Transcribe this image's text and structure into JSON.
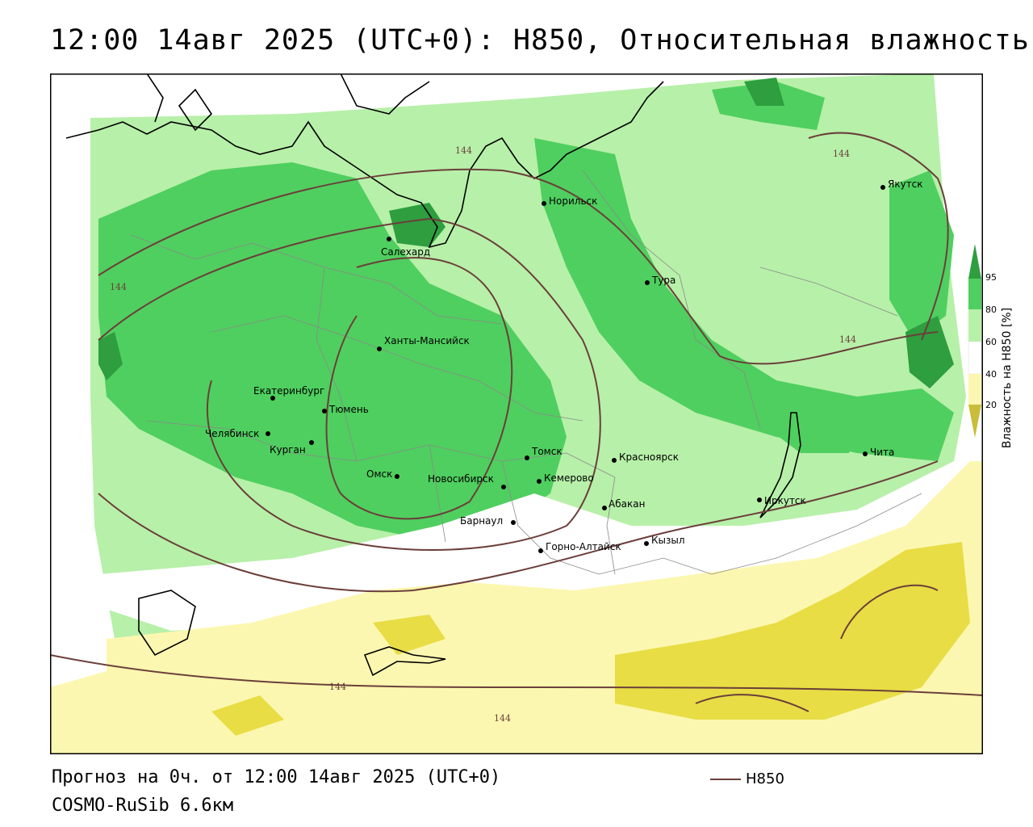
{
  "title": "12:00 14авг 2025 (UTC+0): H850, Относительная влажность",
  "forecast_line": "Прогноз на 0ч. от 12:00 14авг 2025 (UTC+0)",
  "model_line": "COSMO-RuSib 6.6км",
  "legend": {
    "label": "H850",
    "color": "#6b3f3a"
  },
  "colorbar": {
    "label": "Влажность на H850 [%]",
    "ticks": [
      "95",
      "80",
      "60",
      "40",
      "20"
    ],
    "colors": {
      "dark_green": "#2e9e3f",
      "green": "#4fcf5f",
      "light_green": "#b7f0a9",
      "white": "#ffffff",
      "light_yellow": "#fcf7b0",
      "yellow": "#e8dd45",
      "olive": "#c9bd3a"
    }
  },
  "contour_value": "144",
  "cities": [
    {
      "name": "Норильск"
    },
    {
      "name": "Якутск"
    },
    {
      "name": "Салехард"
    },
    {
      "name": "Тура"
    },
    {
      "name": "Ханты-Мансийск"
    },
    {
      "name": "Екатеринбург"
    },
    {
      "name": "Тюмень"
    },
    {
      "name": "Челябинск"
    },
    {
      "name": "Курган"
    },
    {
      "name": "Омск"
    },
    {
      "name": "Новосибирск"
    },
    {
      "name": "Томск"
    },
    {
      "name": "Кемерово"
    },
    {
      "name": "Красноярск"
    },
    {
      "name": "Абакан"
    },
    {
      "name": "Барнаул"
    },
    {
      "name": "Горно-Алтайск"
    },
    {
      "name": "Кызыл"
    },
    {
      "name": "Иркутск"
    },
    {
      "name": "Чита"
    }
  ]
}
